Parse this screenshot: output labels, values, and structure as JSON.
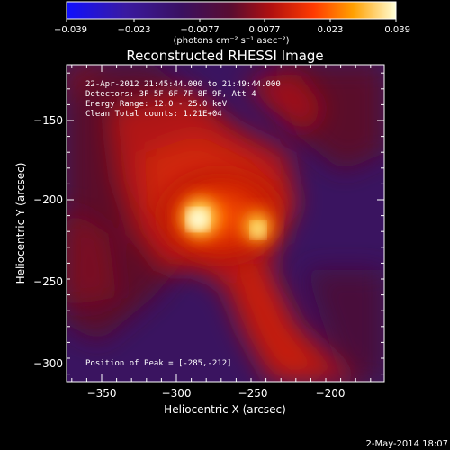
{
  "colorbar": {
    "ticks": [
      "−0.039",
      "−0.023",
      "−0.0077",
      "0.0077",
      "0.023",
      "0.039"
    ],
    "unit_label": "(photons cm⁻² s⁻¹ asec⁻²)"
  },
  "title": "Reconstructed RHESSI Image",
  "info_lines": [
    "22-Apr-2012 21:45:44.000 to 21:49:44.000",
    "Detectors: 3F 5F 6F 7F 8F 9F, Att 4",
    "Energy Range: 12.0 - 25.0 keV",
    "Clean     Total counts: 1.21E+04"
  ],
  "peak_text": "Position of Peak = [-285,-212]",
  "axes": {
    "xlabel": "Heliocentric X (arcsec)",
    "ylabel": "Heliocentric Y (arcsec)",
    "xticks": [
      "−350",
      "−300",
      "−250",
      "−200"
    ],
    "yticks": [
      "−150",
      "−200",
      "−250",
      "−300"
    ]
  },
  "footer_date": "2-May-2014 18:07"
}
